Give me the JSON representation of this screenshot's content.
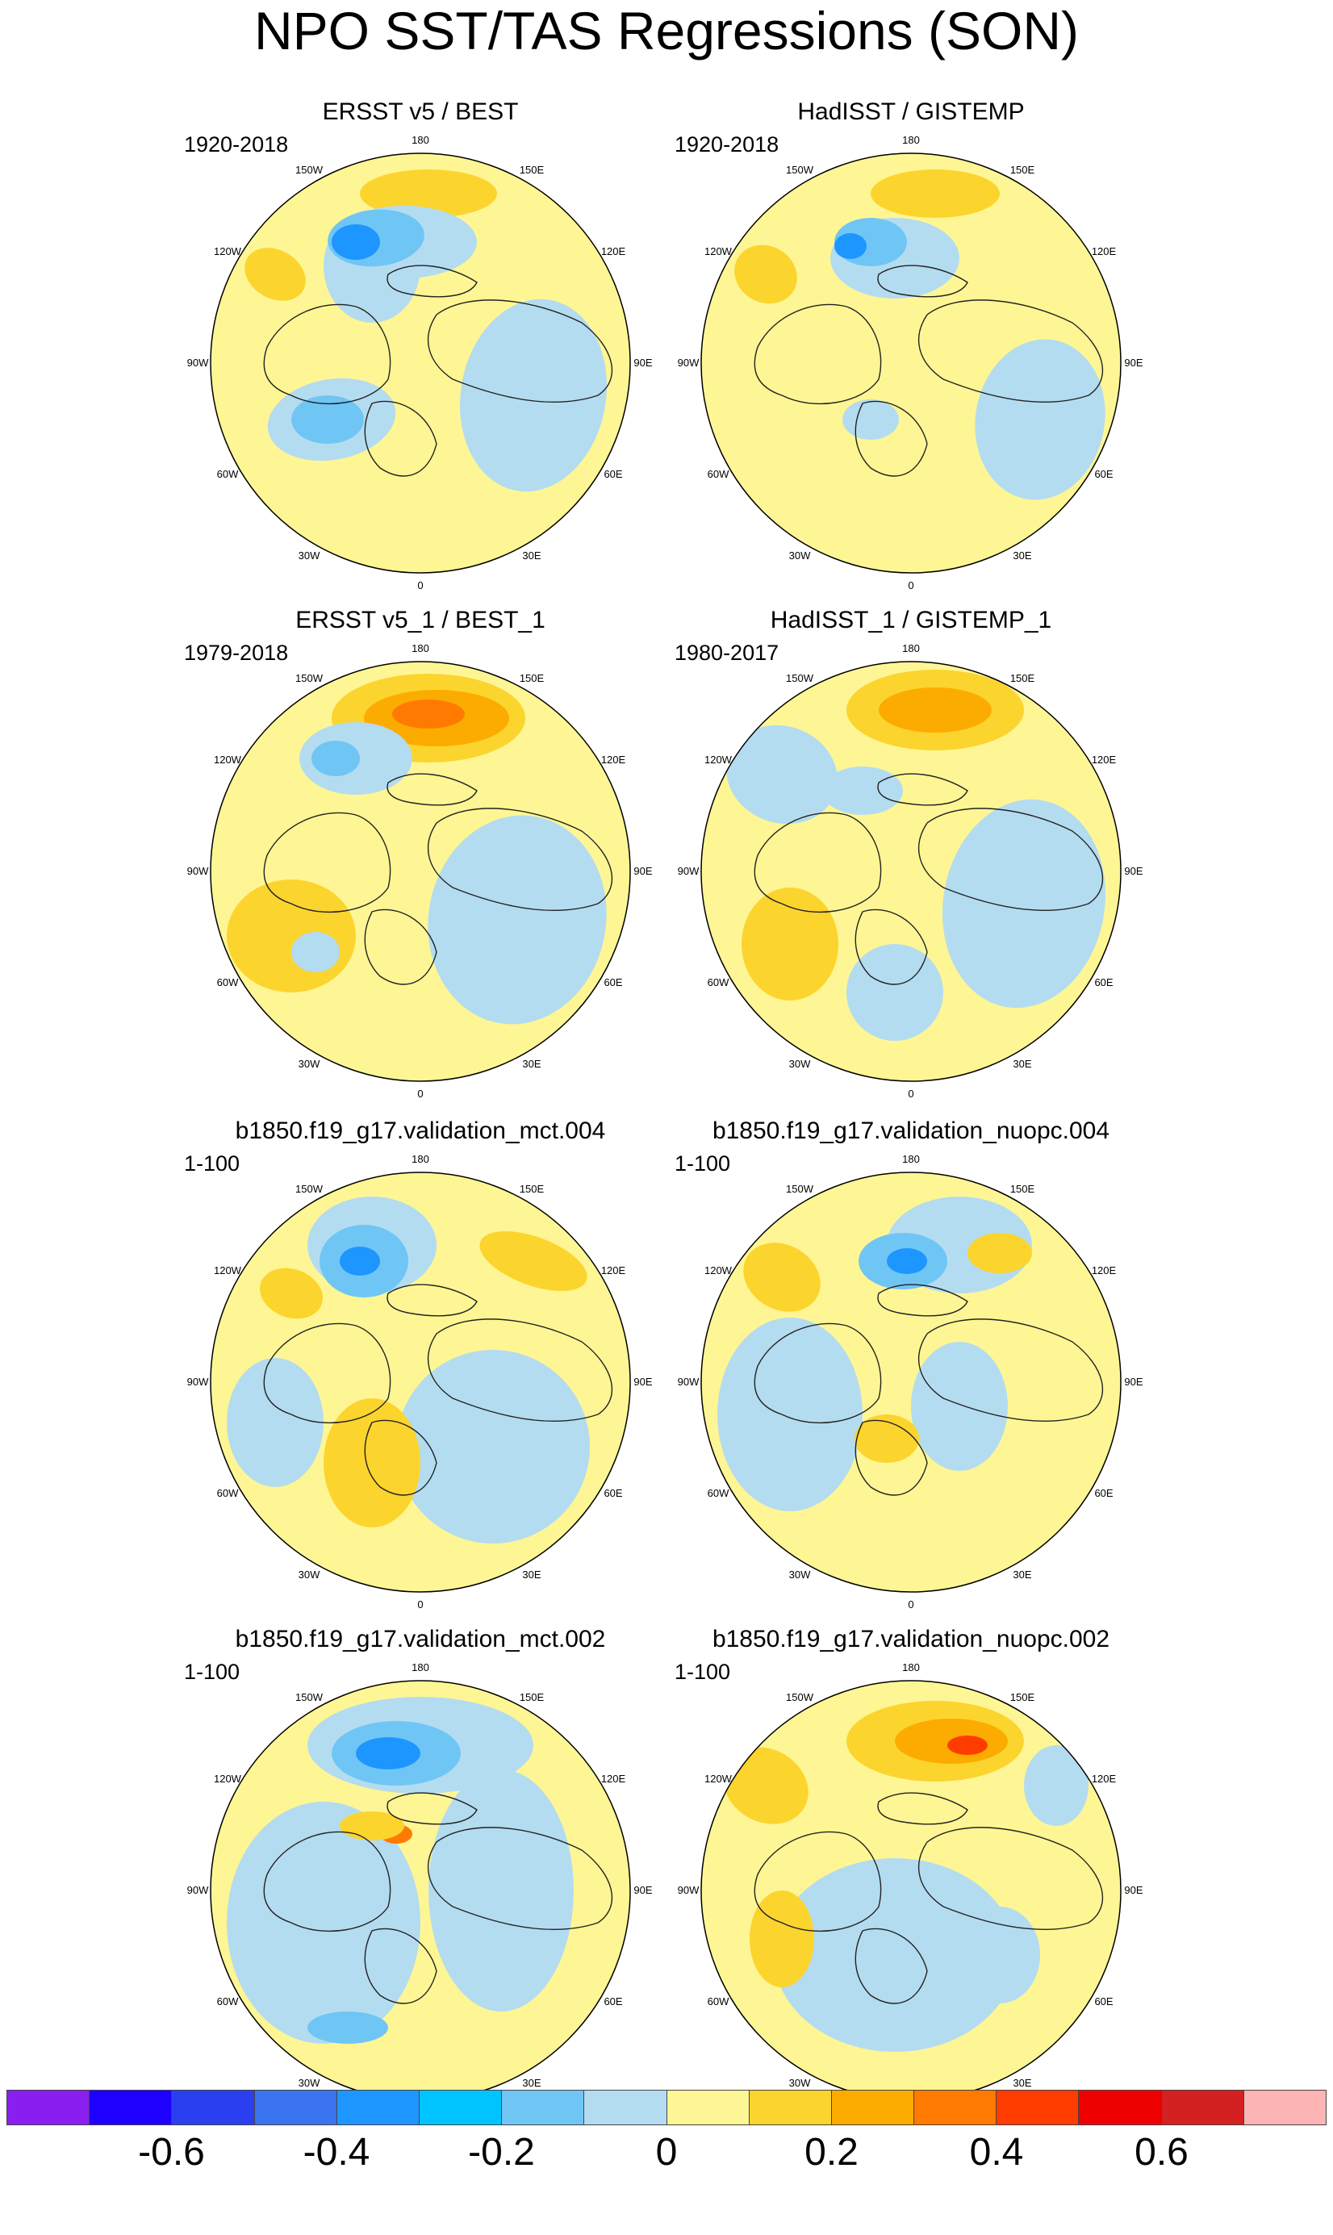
{
  "title": "NPO SST/TAS Regressions (SON)",
  "lon_labels": [
    "180",
    "150E",
    "120E",
    "90E",
    "60E",
    "30E",
    "0",
    "30W",
    "60W",
    "90W",
    "120W",
    "150W"
  ],
  "panels": [
    {
      "title": "ERSST v5 / BEST",
      "years": "1920-2018",
      "pattern": "obs-long"
    },
    {
      "title": "HadISST / GISTEMP",
      "years": "1920-2018",
      "pattern": "obs-long-b"
    },
    {
      "title": "ERSST v5_1 / BEST_1",
      "years": "1979-2018",
      "pattern": "obs-short"
    },
    {
      "title": "HadISST_1 / GISTEMP_1",
      "years": "1980-2017",
      "pattern": "obs-short-b"
    },
    {
      "title": "b1850.f19_g17.validation_mct.004",
      "years": "1-100",
      "pattern": "model-a"
    },
    {
      "title": "b1850.f19_g17.validation_nuopc.004",
      "years": "1-100",
      "pattern": "model-b"
    },
    {
      "title": "b1850.f19_g17.validation_mct.002",
      "years": "1-100",
      "pattern": "model-c"
    },
    {
      "title": "b1850.f19_g17.validation_nuopc.002",
      "years": "1-100",
      "pattern": "model-d"
    }
  ],
  "colorbar": {
    "colors": [
      "#8a1ef0",
      "#1e00ff",
      "#2a40f0",
      "#3a74ee",
      "#1e96ff",
      "#00c4ff",
      "#6fc6f5",
      "#b4dcf0",
      "#fef694",
      "#fcd42e",
      "#fcac00",
      "#ff7a00",
      "#ff3c00",
      "#ee0000",
      "#d42020",
      "#fcb4b4"
    ],
    "labels": [
      "-0.6",
      "-0.4",
      "-0.2",
      "0",
      "0.2",
      "0.4",
      "0.6"
    ]
  },
  "palette": {
    "yellow": "#fef694",
    "light_blue": "#b4dcf0",
    "blue": "#6fc6f5",
    "cyan": "#1e96ff",
    "gold": "#fcd42e",
    "orange": "#fcac00",
    "dark_orange": "#ff7a00",
    "red": "#ff3c00",
    "land": "#ffffff"
  }
}
